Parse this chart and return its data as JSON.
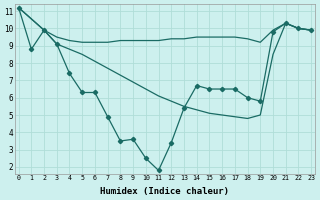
{
  "xlabel": "Humidex (Indice chaleur)",
  "bg_color": "#cdf0ee",
  "grid_color": "#b0ddd8",
  "line_color": "#1a6b64",
  "x_ticks": [
    0,
    1,
    2,
    3,
    4,
    5,
    6,
    7,
    8,
    9,
    10,
    11,
    12,
    13,
    14,
    15,
    16,
    17,
    18,
    19,
    20,
    21,
    22,
    23
  ],
  "y_ticks": [
    2,
    3,
    4,
    5,
    6,
    7,
    8,
    9,
    10,
    11
  ],
  "xlim": [
    -0.3,
    23.3
  ],
  "ylim": [
    1.6,
    11.4
  ],
  "line1_x": [
    0,
    1,
    2,
    3,
    4,
    5,
    6,
    7,
    8,
    9,
    10,
    11,
    12,
    13,
    14,
    15,
    16,
    17,
    18,
    19,
    20,
    21,
    22,
    23
  ],
  "line1_y": [
    11.2,
    8.8,
    9.9,
    9.1,
    7.4,
    6.3,
    6.3,
    4.9,
    3.5,
    3.6,
    2.5,
    1.8,
    3.4,
    5.4,
    6.7,
    6.5,
    6.5,
    6.5,
    6.0,
    5.8,
    9.8,
    10.3,
    10.0,
    9.9
  ],
  "line2_x": [
    0,
    2,
    3,
    4,
    5,
    6,
    7,
    8,
    9,
    10,
    11,
    12,
    13,
    14,
    15,
    16,
    17,
    18,
    19,
    20,
    21,
    22,
    23
  ],
  "line2_y": [
    11.2,
    9.9,
    9.5,
    9.3,
    9.2,
    9.2,
    9.2,
    9.3,
    9.3,
    9.3,
    9.3,
    9.4,
    9.4,
    9.5,
    9.5,
    9.5,
    9.5,
    9.4,
    9.2,
    9.9,
    10.3,
    10.0,
    9.9
  ],
  "line3_x": [
    0,
    2,
    3,
    4,
    5,
    6,
    7,
    8,
    9,
    10,
    11,
    12,
    13,
    14,
    15,
    16,
    17,
    18,
    19,
    20,
    21,
    22,
    23
  ],
  "line3_y": [
    11.2,
    9.9,
    9.1,
    8.8,
    8.5,
    8.1,
    7.7,
    7.3,
    6.9,
    6.5,
    6.1,
    5.8,
    5.5,
    5.3,
    5.1,
    5.0,
    4.9,
    4.8,
    5.0,
    8.5,
    10.3,
    10.0,
    9.9
  ]
}
